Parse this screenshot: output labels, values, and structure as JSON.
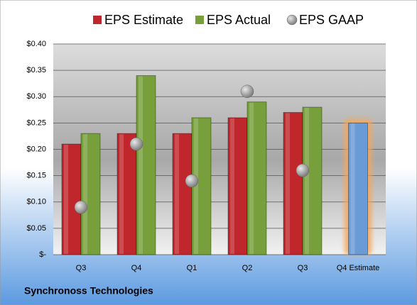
{
  "chart_data": {
    "type": "bar",
    "categories": [
      "Q3",
      "Q4",
      "Q1",
      "Q2",
      "Q3",
      "Q4 Estimate"
    ],
    "series": [
      {
        "name": "EPS Estimate",
        "color": "#c0272d",
        "values": [
          0.21,
          0.23,
          0.23,
          0.26,
          0.27,
          0.25
        ],
        "highlight": {
          "index": 5,
          "color": "#6a9bd6",
          "glow": "#f5a85a"
        }
      },
      {
        "name": "EPS Actual",
        "color": "#77a03c",
        "values": [
          0.23,
          0.34,
          0.26,
          0.29,
          0.28,
          null
        ]
      },
      {
        "name": "EPS GAAP",
        "color": "#9a9a9a",
        "marker": "circle",
        "values": [
          0.09,
          0.21,
          0.14,
          0.31,
          0.16,
          null
        ]
      }
    ],
    "ylim": [
      0,
      0.4
    ],
    "yticks": [
      {
        "value": 0,
        "label": "$-"
      },
      {
        "value": 0.05,
        "label": "$0.05"
      },
      {
        "value": 0.1,
        "label": "$0.10"
      },
      {
        "value": 0.15,
        "label": "$0.15"
      },
      {
        "value": 0.2,
        "label": "$0.20"
      },
      {
        "value": 0.25,
        "label": "$0.25"
      },
      {
        "value": 0.3,
        "label": "$0.30"
      },
      {
        "value": 0.35,
        "label": "$0.35"
      },
      {
        "value": 0.4,
        "label": "$0.40"
      }
    ],
    "grid": true,
    "legend": "top",
    "footer": "Synchronoss Technologies"
  }
}
